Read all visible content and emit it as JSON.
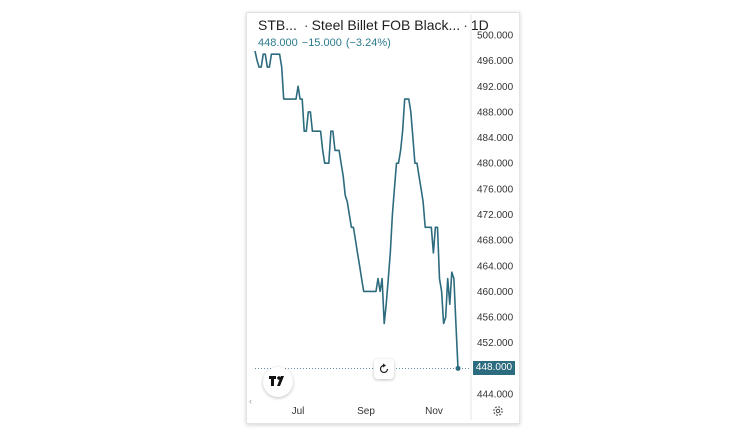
{
  "header": {
    "symbol": "STB...",
    "title": "Steel Billet FOB Black...",
    "interval": "1D",
    "separator": "·",
    "price": "448.000",
    "change": "−15.000",
    "change_pct": "(−3.24%)"
  },
  "colors": {
    "line": "#2d6b7e",
    "accent": "#2a7a8c",
    "axis_text": "#333333"
  },
  "last_price_label": "448.000",
  "icons": {
    "logo": "tradingview-logo-icon",
    "reset": "reset-icon",
    "settings": "settings-gear-icon",
    "scroll": "chevron-left-icon"
  },
  "chart_data": {
    "type": "line",
    "title": "",
    "xlabel": "",
    "ylabel": "",
    "ylim": [
      444,
      500
    ],
    "y_ticks": [
      "500.000",
      "496.000",
      "492.000",
      "488.000",
      "484.000",
      "480.000",
      "476.000",
      "472.000",
      "468.000",
      "464.000",
      "460.000",
      "456.000",
      "452.000",
      "448.000",
      "444.000"
    ],
    "x_ticks": [
      "Jul",
      "Sep",
      "Nov"
    ],
    "grid": false,
    "series": [
      {
        "values": [
          497.5,
          496,
          495,
          495,
          497,
          497,
          495,
          495,
          497,
          497,
          497,
          497,
          497,
          495,
          490,
          490,
          490,
          490,
          490,
          490,
          490,
          492,
          490,
          490,
          485,
          485,
          488,
          488,
          485,
          485,
          485,
          485,
          485,
          482,
          480,
          480,
          480,
          485,
          485,
          482,
          482,
          482,
          480,
          478,
          475,
          474,
          472,
          470,
          470,
          468,
          466,
          464,
          462,
          460,
          460,
          460,
          460,
          460,
          460,
          460,
          462,
          460,
          462,
          455,
          458,
          462,
          466,
          472,
          476,
          480,
          480,
          482,
          485,
          490,
          490,
          490,
          488,
          484,
          480,
          480,
          478,
          476,
          474,
          470,
          470,
          470,
          470,
          466,
          470,
          470,
          462,
          460,
          455,
          456,
          462,
          458,
          463,
          462,
          455,
          448
        ]
      }
    ]
  }
}
